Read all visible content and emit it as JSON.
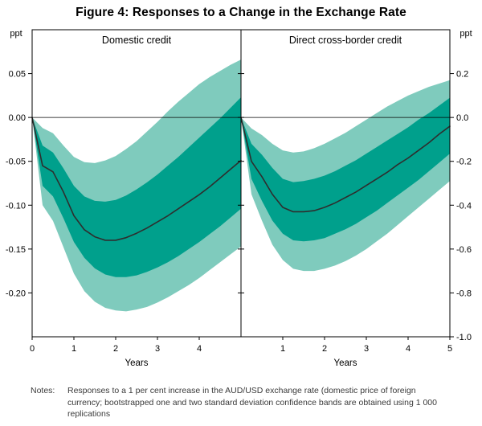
{
  "figure": {
    "title": "Figure 4: Responses to a Change in the Exchange Rate",
    "notes_label": "Notes:",
    "notes_text": "Responses to a 1 per cent increase in the AUD/USD exchange rate (domestic price of foreign currency; bootstrapped one and two standard deviation confidence bands are obtained using 1 000 replications"
  },
  "colors": {
    "band_outer": "#7fcbbd",
    "band_inner": "#00a08c",
    "center_line": "#2e2e2e",
    "axis": "#000000"
  },
  "chart_data": [
    {
      "type": "area",
      "title": "Domestic credit",
      "unit_label": "ppt",
      "xlabel": "Years",
      "xlim": [
        0,
        5
      ],
      "ylim": [
        -0.25,
        0.1
      ],
      "xticks": [
        0,
        1,
        2,
        3,
        4
      ],
      "yticks": [
        0.05,
        0.0,
        -0.05,
        -0.1,
        -0.15,
        -0.2
      ],
      "ytick_decimals": 2,
      "x": [
        0,
        0.25,
        0.5,
        0.75,
        1,
        1.25,
        1.5,
        1.75,
        2,
        2.25,
        2.5,
        2.75,
        3,
        3.25,
        3.5,
        3.75,
        4,
        4.25,
        4.5,
        4.75,
        5
      ],
      "series": [
        {
          "name": "two_sd_upper",
          "values": [
            0,
            -0.012,
            -0.018,
            -0.032,
            -0.045,
            -0.051,
            -0.052,
            -0.049,
            -0.044,
            -0.036,
            -0.027,
            -0.016,
            -0.005,
            0.007,
            0.018,
            0.028,
            0.038,
            0.046,
            0.053,
            0.06,
            0.066
          ]
        },
        {
          "name": "two_sd_lower",
          "values": [
            0,
            -0.1,
            -0.118,
            -0.148,
            -0.178,
            -0.198,
            -0.21,
            -0.217,
            -0.22,
            -0.221,
            -0.219,
            -0.216,
            -0.211,
            -0.205,
            -0.198,
            -0.191,
            -0.183,
            -0.174,
            -0.165,
            -0.156,
            -0.147
          ]
        },
        {
          "name": "one_sd_upper",
          "values": [
            0,
            -0.032,
            -0.04,
            -0.058,
            -0.078,
            -0.09,
            -0.095,
            -0.096,
            -0.094,
            -0.089,
            -0.082,
            -0.074,
            -0.065,
            -0.055,
            -0.045,
            -0.034,
            -0.023,
            -0.012,
            -0.001,
            0.011,
            0.023
          ]
        },
        {
          "name": "one_sd_lower",
          "values": [
            0,
            -0.078,
            -0.09,
            -0.115,
            -0.142,
            -0.16,
            -0.172,
            -0.179,
            -0.182,
            -0.182,
            -0.18,
            -0.176,
            -0.171,
            -0.165,
            -0.158,
            -0.15,
            -0.142,
            -0.133,
            -0.124,
            -0.114,
            -0.104
          ]
        },
        {
          "name": "response",
          "values": [
            0,
            -0.055,
            -0.062,
            -0.085,
            -0.112,
            -0.128,
            -0.136,
            -0.14,
            -0.14,
            -0.137,
            -0.132,
            -0.126,
            -0.119,
            -0.112,
            -0.104,
            -0.096,
            -0.088,
            -0.079,
            -0.069,
            -0.059,
            -0.049
          ]
        }
      ]
    },
    {
      "type": "area",
      "title": "Direct cross-border credit",
      "unit_label": "ppt",
      "xlabel": "Years",
      "xlim": [
        0,
        5
      ],
      "ylim": [
        -1.0,
        0.4
      ],
      "xticks": [
        1,
        2,
        3,
        4,
        5
      ],
      "yticks": [
        0.2,
        0.0,
        -0.2,
        -0.4,
        -0.6,
        -0.8,
        -1.0
      ],
      "ytick_decimals": 1,
      "x": [
        0,
        0.25,
        0.5,
        0.75,
        1,
        1.25,
        1.5,
        1.75,
        2,
        2.25,
        2.5,
        2.75,
        3,
        3.25,
        3.5,
        3.75,
        4,
        4.25,
        4.5,
        4.75,
        5
      ],
      "series": [
        {
          "name": "two_sd_upper",
          "values": [
            0,
            -0.05,
            -0.08,
            -0.12,
            -0.15,
            -0.16,
            -0.155,
            -0.14,
            -0.12,
            -0.095,
            -0.07,
            -0.04,
            -0.01,
            0.02,
            0.05,
            0.075,
            0.1,
            0.12,
            0.14,
            0.155,
            0.17
          ]
        },
        {
          "name": "two_sd_lower",
          "values": [
            0,
            -0.35,
            -0.47,
            -0.58,
            -0.65,
            -0.69,
            -0.7,
            -0.7,
            -0.69,
            -0.675,
            -0.655,
            -0.63,
            -0.6,
            -0.565,
            -0.53,
            -0.49,
            -0.45,
            -0.41,
            -0.37,
            -0.33,
            -0.29
          ]
        },
        {
          "name": "one_sd_upper",
          "values": [
            0,
            -0.12,
            -0.17,
            -0.23,
            -0.28,
            -0.295,
            -0.29,
            -0.28,
            -0.265,
            -0.245,
            -0.22,
            -0.195,
            -0.165,
            -0.135,
            -0.105,
            -0.075,
            -0.045,
            -0.01,
            0.02,
            0.055,
            0.09
          ]
        },
        {
          "name": "one_sd_lower",
          "values": [
            0,
            -0.28,
            -0.38,
            -0.47,
            -0.53,
            -0.56,
            -0.565,
            -0.56,
            -0.55,
            -0.53,
            -0.51,
            -0.485,
            -0.455,
            -0.425,
            -0.39,
            -0.355,
            -0.32,
            -0.285,
            -0.245,
            -0.205,
            -0.165
          ]
        },
        {
          "name": "response",
          "values": [
            0,
            -0.2,
            -0.27,
            -0.35,
            -0.41,
            -0.43,
            -0.43,
            -0.425,
            -0.41,
            -0.39,
            -0.365,
            -0.34,
            -0.31,
            -0.28,
            -0.25,
            -0.215,
            -0.185,
            -0.15,
            -0.115,
            -0.075,
            -0.04
          ]
        }
      ]
    }
  ]
}
